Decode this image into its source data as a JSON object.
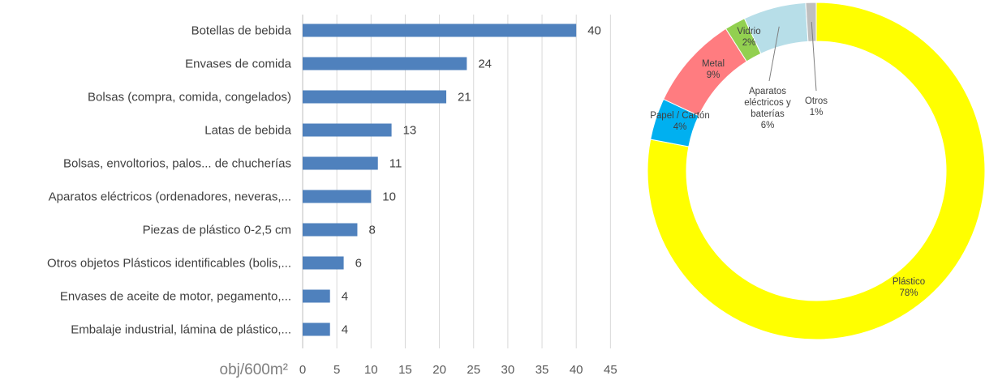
{
  "chart_data": [
    {
      "type": "bar",
      "orientation": "horizontal",
      "categories": [
        "Botellas de bebida",
        "Envases de comida",
        "Bolsas (compra, comida, congelados)",
        "Latas de bebida",
        "Bolsas, envoltorios, palos... de chucherías",
        "Aparatos eléctricos (ordenadores, neveras,...",
        "Piezas de plástico 0-2,5 cm",
        "Otros objetos Plásticos identificables (bolis,...",
        "Envases de aceite de motor, pegamento,...",
        "Embalaje industrial, lámina de plástico,..."
      ],
      "values": [
        40,
        24,
        21,
        13,
        11,
        10,
        8,
        6,
        4,
        4
      ],
      "value_labels": [
        "40",
        "24",
        "21",
        "13",
        "11",
        "10",
        "8",
        "6",
        "4",
        "4"
      ],
      "xlim": [
        0,
        45
      ],
      "x_ticks": [
        "0",
        "5",
        "10",
        "15",
        "20",
        "25",
        "30",
        "35",
        "40",
        "45"
      ],
      "x_unit": "obj/600m²",
      "grid": "vertical",
      "bar_color": "#4F81BD"
    },
    {
      "type": "pie",
      "style": "donut",
      "slices": [
        {
          "label": "Plástico",
          "pct_label": "78%",
          "value": 78,
          "color": "#FFFF00"
        },
        {
          "label": "Papel / Cartón",
          "pct_label": "4%",
          "value": 4,
          "color": "#00B0F0"
        },
        {
          "label": "Metal",
          "pct_label": "9%",
          "value": 9,
          "color": "#FF7C80"
        },
        {
          "label": "Vidrio",
          "pct_label": "2%",
          "value": 2,
          "color": "#92D050"
        },
        {
          "label": "Aparatos eléctricos y baterías",
          "label_lines": [
            "Aparatos",
            "eléctricos y",
            "baterías"
          ],
          "pct_label": "6%",
          "value": 6,
          "color": "#B7DEE8"
        },
        {
          "label": "Otros",
          "pct_label": "1%",
          "value": 1,
          "color": "#BFBFBF"
        }
      ]
    }
  ]
}
